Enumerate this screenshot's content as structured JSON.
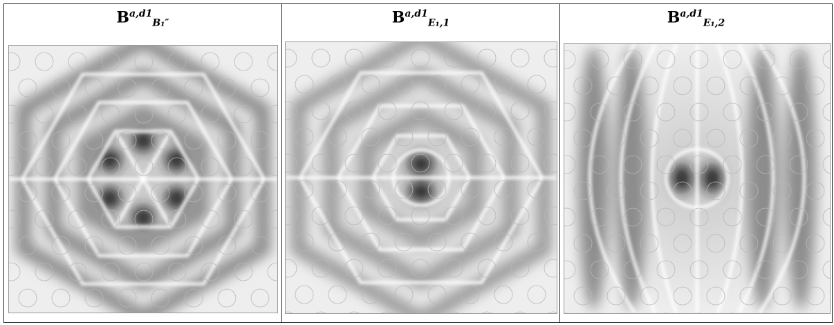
{
  "panels": [
    {
      "title": {
        "base": "B",
        "sup": "a,d1",
        "sub": "B₁″"
      }
    },
    {
      "title": {
        "base": "B",
        "sup": "a,d1",
        "sub": "E₁,1"
      }
    },
    {
      "title": {
        "base": "B",
        "sup": "a,d1",
        "sub": "E₁,2"
      }
    }
  ]
}
